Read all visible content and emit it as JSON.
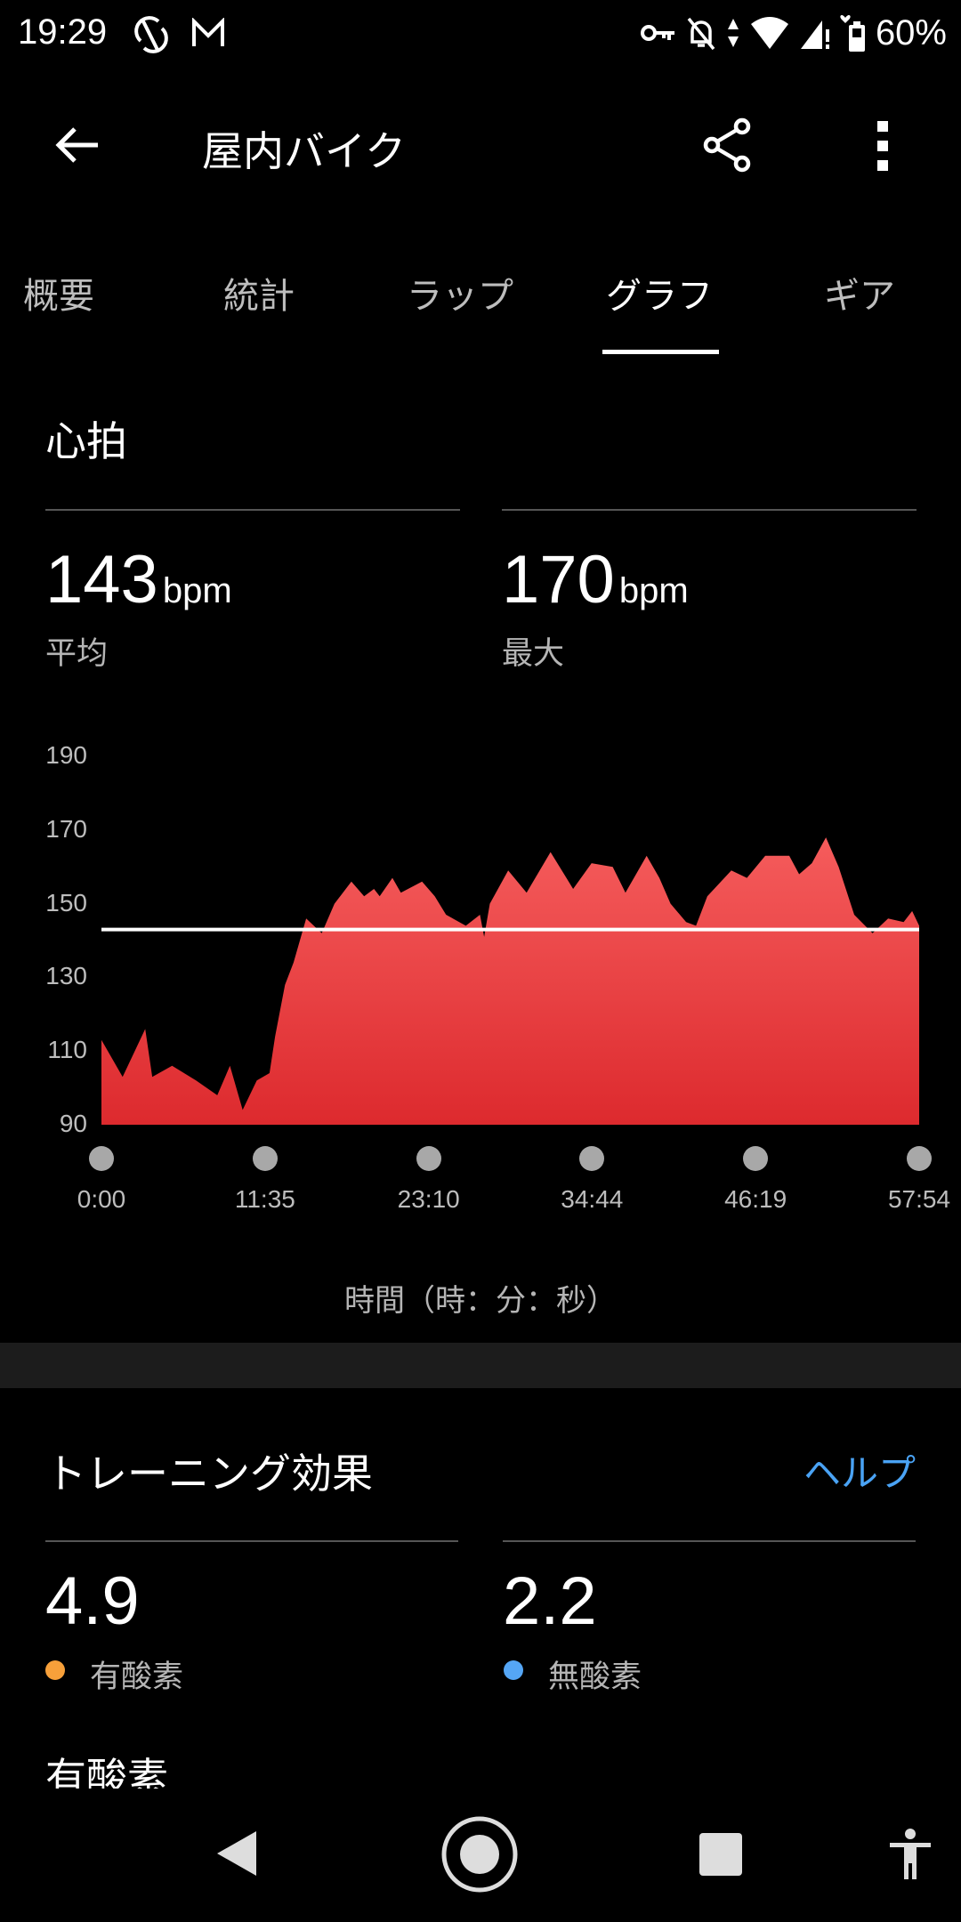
{
  "status_bar": {
    "time": "19:29",
    "battery": "60%",
    "icons": [
      "sync-off-icon",
      "gmail-icon",
      "vpn-key-icon",
      "bell-off-icon",
      "data-arrows-icon",
      "wifi-icon",
      "signal-icon",
      "heart-icon",
      "battery-icon"
    ]
  },
  "header": {
    "title": "屋内バイク",
    "back_icon": "arrow-left-icon",
    "share_icon": "share-icon",
    "more_icon": "more-vertical-icon"
  },
  "tabs": [
    {
      "label": "概要"
    },
    {
      "label": "統計"
    },
    {
      "label": "ラップ"
    },
    {
      "label": "グラフ",
      "active": true
    },
    {
      "label": "ギア"
    }
  ],
  "heart_rate": {
    "title": "心拍",
    "avg": {
      "value": "143",
      "unit": "bpm",
      "label": "平均"
    },
    "max": {
      "value": "170",
      "unit": "bpm",
      "label": "最大"
    }
  },
  "chart_data": {
    "type": "area",
    "xlabel": "時間（時：分：秒）",
    "ylabel": "",
    "ylim": [
      90,
      190
    ],
    "yticks": [
      "190",
      "170",
      "150",
      "130",
      "110",
      "90"
    ],
    "xticks": [
      "0:00",
      "11:35",
      "23:10",
      "34:44",
      "46:19",
      "57:54"
    ],
    "average_line": 143,
    "fill_color_top": "#f55c5c",
    "fill_color_bottom": "#dd2a2e",
    "average_line_color": "#ffffff",
    "grid": false,
    "x": [
      "0:00",
      "1:30",
      "3:06",
      "3:36",
      "5:00",
      "6:42",
      "8:12",
      "9:06",
      "10:00",
      "11:00",
      "11:54",
      "12:18",
      "13:00",
      "13:36",
      "14:30",
      "15:36",
      "16:30",
      "17:42",
      "18:36",
      "19:18",
      "19:42",
      "20:36",
      "21:12",
      "22:42",
      "23:36",
      "24:24",
      "25:48",
      "26:48",
      "27:06",
      "27:30",
      "28:48",
      "30:06",
      "31:48",
      "33:24",
      "34:42",
      "36:12",
      "37:06",
      "38:36",
      "39:30",
      "40:18",
      "41:24",
      "42:06",
      "42:54",
      "44:36",
      "45:42",
      "47:00",
      "48:42",
      "49:24",
      "50:18",
      "51:18",
      "52:12",
      "53:18",
      "54:36",
      "55:42",
      "56:48",
      "57:24",
      "57:54"
    ],
    "values": [
      113,
      103,
      116,
      103,
      106,
      102,
      98,
      106,
      94,
      102,
      104,
      114,
      128,
      134,
      146,
      142,
      150,
      156,
      152,
      154,
      152,
      157,
      153,
      156,
      152,
      147,
      144,
      147,
      141,
      150,
      159,
      153,
      164,
      154,
      161,
      160,
      153,
      163,
      157,
      150,
      145,
      144,
      152,
      159,
      157,
      163,
      163,
      158,
      161,
      168,
      160,
      147,
      142,
      146,
      145,
      148,
      144
    ]
  },
  "training_effect": {
    "title": "トレーニング効果",
    "help_label": "ヘルプ",
    "aerobic": {
      "value": "4.9",
      "label": "有酸素",
      "color": "#f7a03a"
    },
    "anaerobic": {
      "value": "2.2",
      "label": "無酸素",
      "color": "#55a6f5"
    },
    "next_heading": "有酸素"
  },
  "colors": {
    "accent": "#4aa3f5",
    "background": "#000000"
  },
  "nav_bar": {
    "icons": [
      "back-triangle-icon",
      "home-circle-icon",
      "recents-square-icon",
      "accessibility-icon"
    ]
  }
}
